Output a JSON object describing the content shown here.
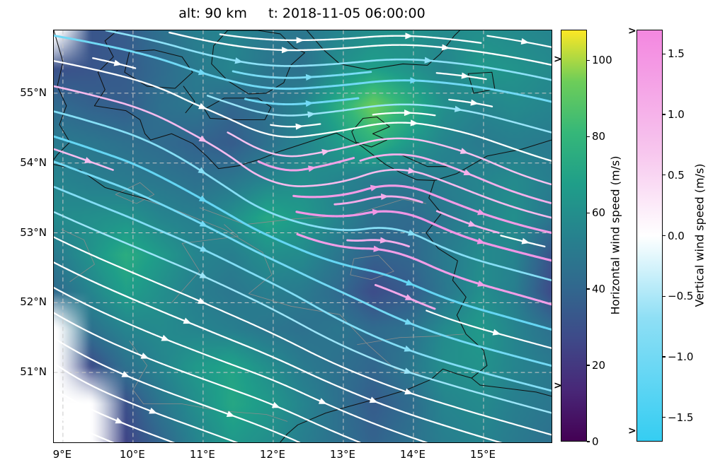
{
  "figure": {
    "title": "alt: 90 km     t: 2018-11-05 06:00:00",
    "extend_arrow_glyph": ">"
  },
  "chart_data": {
    "type": "streamline-map",
    "title": "alt: 90 km     t: 2018-11-05 06:00:00",
    "extent": {
      "lon_min": 8.87,
      "lon_max": 15.97,
      "lat_min": 50.0,
      "lat_max": 55.9
    },
    "x_ticks": [
      {
        "v": 9,
        "label": "9°E"
      },
      {
        "v": 10,
        "label": "10°E"
      },
      {
        "v": 11,
        "label": "11°E"
      },
      {
        "v": 12,
        "label": "12°E"
      },
      {
        "v": 13,
        "label": "13°E"
      },
      {
        "v": 14,
        "label": "14°E"
      },
      {
        "v": 15,
        "label": "15°E"
      }
    ],
    "y_ticks": [
      {
        "v": 51,
        "label": "51°N"
      },
      {
        "v": 52,
        "label": "52°N"
      },
      {
        "v": 53,
        "label": "53°N"
      },
      {
        "v": 54,
        "label": "54°N"
      },
      {
        "v": 55,
        "label": "55°N"
      }
    ],
    "lon_gridlines": [
      9,
      10,
      11,
      12,
      13,
      14,
      15
    ],
    "lat_gridlines": [
      51,
      52,
      53,
      54,
      55
    ],
    "colormaps": {
      "viridis": [
        "#440154",
        "#482878",
        "#3e4a89",
        "#31688e",
        "#26828e",
        "#1f9e89",
        "#35b779",
        "#6dcd59",
        "#fde725"
      ],
      "vertical": {
        "colors": [
          "#35cdf2",
          "#8fdff5",
          "#ffffff",
          "#f7c7ee",
          "#f387e0"
        ],
        "positions": [
          0,
          0.3,
          0.5,
          0.7,
          1
        ]
      }
    },
    "stream_colors": {
      "positive": "#ee7fdf",
      "negative": "#2fc8f0",
      "neutral": "#ffffff"
    },
    "colorbars": [
      {
        "id": "horizontal",
        "label": "Horizontal wind speed (m/s)",
        "vmin": 0,
        "vmax": 108,
        "ticks": [
          {
            "v": 0,
            "label": "0"
          },
          {
            "v": 20,
            "label": "20"
          },
          {
            "v": 40,
            "label": "40"
          },
          {
            "v": 60,
            "label": "60"
          },
          {
            "v": 80,
            "label": "80"
          },
          {
            "v": 100,
            "label": "100"
          }
        ]
      },
      {
        "id": "vertical",
        "label": "Vertical wind speed (m/s)",
        "vmin": -1.7,
        "vmax": 1.7,
        "ticks": [
          {
            "v": 1.5,
            "label": "1.5"
          },
          {
            "v": 1.0,
            "label": "1.0"
          },
          {
            "v": 0.5,
            "label": "0.5"
          },
          {
            "v": 0.0,
            "label": "0.0"
          },
          {
            "v": -0.5,
            "label": "−0.5"
          },
          {
            "v": -1.0,
            "label": "−1.0"
          },
          {
            "v": -1.5,
            "label": "−1.5"
          }
        ]
      }
    ],
    "wind_field": {
      "nx": 9,
      "ny": 7,
      "order": "rows-north-to-south",
      "u": [
        [
          30,
          40,
          45,
          50,
          60,
          65,
          60,
          55,
          50
        ],
        [
          35,
          45,
          40,
          55,
          70,
          80,
          65,
          55,
          50
        ],
        [
          40,
          55,
          60,
          65,
          60,
          55,
          60,
          55,
          50
        ],
        [
          45,
          60,
          70,
          75,
          55,
          45,
          50,
          55,
          45
        ],
        [
          35,
          50,
          60,
          65,
          60,
          50,
          45,
          50,
          40
        ],
        [
          25,
          45,
          60,
          70,
          60,
          55,
          50,
          45,
          40
        ],
        [
          30,
          45,
          55,
          60,
          55,
          50,
          45,
          40,
          35
        ]
      ],
      "v": [
        [
          -5,
          -8,
          -10,
          -5,
          0,
          5,
          -5,
          -8,
          -10
        ],
        [
          -8,
          -12,
          -20,
          -15,
          5,
          10,
          -5,
          -10,
          -12
        ],
        [
          -15,
          -20,
          -35,
          -50,
          10,
          20,
          -20,
          -25,
          -15
        ],
        [
          -22,
          -25,
          -30,
          -40,
          -20,
          5,
          -25,
          -15,
          -10
        ],
        [
          -20,
          -22,
          -25,
          -30,
          -35,
          -25,
          -18,
          -14,
          -12
        ],
        [
          -18,
          -20,
          -22,
          -25,
          -28,
          -22,
          -15,
          -12,
          -10
        ],
        [
          -15,
          -18,
          -20,
          -22,
          -25,
          -20,
          -15,
          -12,
          -10
        ]
      ],
      "w": [
        [
          0.3,
          0.0,
          0.0,
          0.0,
          -0.2,
          0.0,
          0.0,
          0.0,
          0.0
        ],
        [
          0.5,
          0.2,
          0.3,
          0.2,
          -0.8,
          -0.6,
          0.2,
          0.0,
          0.0
        ],
        [
          0.2,
          0.5,
          1.0,
          1.2,
          0.8,
          0.6,
          0.8,
          0.3,
          0.0
        ],
        [
          0.0,
          0.2,
          0.4,
          -0.6,
          -0.9,
          0.5,
          1.0,
          0.3,
          0.0
        ],
        [
          0.0,
          0.0,
          0.0,
          0.2,
          -0.5,
          0.8,
          0.6,
          0.0,
          0.0
        ],
        [
          0.0,
          0.0,
          0.0,
          0.0,
          0.3,
          0.9,
          0.4,
          0.0,
          0.0
        ],
        [
          0.0,
          0.0,
          0.0,
          0.0,
          0.2,
          0.5,
          0.2,
          0.0,
          0.0
        ]
      ]
    },
    "speed_field": {
      "nx": 15,
      "ny": 12,
      "order": "rows-north-to-south",
      "values": [
        [
          null,
          32,
          35,
          45,
          52,
          55,
          50,
          48,
          55,
          60,
          62,
          58,
          60,
          58,
          55
        ],
        [
          30,
          32,
          35,
          42,
          50,
          55,
          48,
          45,
          60,
          68,
          62,
          55,
          65,
          62,
          58
        ],
        [
          42,
          38,
          36,
          45,
          48,
          40,
          45,
          55,
          75,
          95,
          78,
          60,
          55,
          58,
          55
        ],
        [
          50,
          48,
          45,
          42,
          38,
          35,
          45,
          55,
          65,
          78,
          65,
          55,
          50,
          52,
          50
        ],
        [
          55,
          52,
          50,
          48,
          45,
          48,
          55,
          60,
          55,
          50,
          48,
          52,
          55,
          58,
          52
        ],
        [
          58,
          60,
          62,
          55,
          52,
          60,
          72,
          65,
          55,
          45,
          42,
          48,
          55,
          60,
          48
        ],
        [
          50,
          62,
          75,
          65,
          55,
          52,
          60,
          58,
          48,
          38,
          40,
          50,
          58,
          55,
          32
        ],
        [
          42,
          55,
          68,
          60,
          52,
          48,
          52,
          50,
          42,
          28,
          35,
          48,
          60,
          52,
          28
        ],
        [
          null,
          45,
          55,
          58,
          55,
          52,
          48,
          45,
          48,
          42,
          45,
          58,
          65,
          55,
          45
        ],
        [
          null,
          28,
          45,
          55,
          65,
          70,
          60,
          50,
          45,
          40,
          48,
          60,
          62,
          55,
          50
        ],
        [
          null,
          null,
          30,
          48,
          60,
          72,
          65,
          55,
          45,
          35,
          42,
          55,
          58,
          52,
          48
        ],
        [
          null,
          null,
          25,
          40,
          55,
          65,
          60,
          52,
          45,
          38,
          45,
          52,
          55,
          50,
          45
        ]
      ]
    }
  },
  "map": {
    "coastlines": [
      [
        [
          8.87,
          55.9
        ],
        [
          9.0,
          55.45
        ],
        [
          8.92,
          55.1
        ],
        [
          9.05,
          54.82
        ],
        [
          8.95,
          54.55
        ],
        [
          9.1,
          54.3
        ],
        [
          8.92,
          54.12
        ],
        [
          8.87,
          54.05
        ]
      ],
      [
        [
          9.45,
          54.82
        ],
        [
          9.6,
          55.05
        ],
        [
          9.5,
          55.3
        ],
        [
          9.72,
          55.52
        ],
        [
          9.6,
          55.75
        ],
        [
          9.78,
          55.9
        ]
      ],
      [
        [
          8.87,
          53.98
        ],
        [
          9.25,
          53.9
        ],
        [
          9.6,
          53.65
        ],
        [
          9.95,
          53.55
        ],
        [
          10.35,
          53.44
        ]
      ],
      [
        [
          9.45,
          54.82
        ],
        [
          9.9,
          54.75
        ],
        [
          10.1,
          54.62
        ],
        [
          10.17,
          54.42
        ],
        [
          10.25,
          54.33
        ],
        [
          10.55,
          54.42
        ],
        [
          10.85,
          54.28
        ],
        [
          11.05,
          54.1
        ],
        [
          11.22,
          53.92
        ],
        [
          11.5,
          53.96
        ],
        [
          11.8,
          54.05
        ],
        [
          12.1,
          54.17
        ],
        [
          12.5,
          54.3
        ],
        [
          12.9,
          54.43
        ],
        [
          13.03,
          54.36
        ],
        [
          13.25,
          54.25
        ],
        [
          13.6,
          53.98
        ],
        [
          13.82,
          53.86
        ],
        [
          14.05,
          53.76
        ],
        [
          14.3,
          53.75
        ],
        [
          14.62,
          53.85
        ],
        [
          15.05,
          54.1
        ],
        [
          15.55,
          54.2
        ],
        [
          15.97,
          54.33
        ]
      ],
      [
        [
          14.3,
          53.75
        ],
        [
          14.22,
          53.5
        ],
        [
          14.4,
          53.28
        ],
        [
          14.18,
          53.0
        ],
        [
          14.35,
          52.78
        ],
        [
          14.63,
          52.6
        ],
        [
          14.56,
          52.32
        ],
        [
          14.75,
          52.08
        ],
        [
          14.62,
          51.82
        ],
        [
          14.75,
          51.55
        ],
        [
          15.0,
          51.32
        ],
        [
          15.05,
          51.1
        ],
        [
          14.83,
          50.92
        ],
        [
          14.95,
          50.82
        ]
      ],
      [
        [
          12.1,
          50.0
        ],
        [
          12.2,
          50.12
        ],
        [
          12.35,
          50.25
        ],
        [
          12.75,
          50.42
        ],
        [
          13.1,
          50.52
        ],
        [
          13.5,
          50.63
        ],
        [
          13.9,
          50.75
        ],
        [
          14.25,
          50.9
        ],
        [
          14.42,
          51.05
        ],
        [
          14.62,
          50.98
        ],
        [
          14.83,
          50.92
        ]
      ],
      [
        [
          14.95,
          50.82
        ],
        [
          15.35,
          50.77
        ],
        [
          15.75,
          50.72
        ],
        [
          15.97,
          50.66
        ]
      ],
      [
        [
          9.95,
          55.6
        ],
        [
          10.3,
          55.62
        ],
        [
          10.7,
          55.52
        ],
        [
          10.85,
          55.3
        ],
        [
          10.6,
          55.07
        ],
        [
          10.2,
          55.1
        ],
        [
          9.88,
          55.3
        ],
        [
          9.95,
          55.6
        ]
      ],
      [
        [
          11.15,
          55.68
        ],
        [
          11.35,
          55.9
        ],
        [
          11.78,
          55.9
        ],
        [
          12.1,
          55.85
        ],
        [
          12.3,
          55.65
        ],
        [
          12.45,
          55.58
        ],
        [
          12.25,
          55.4
        ],
        [
          12.15,
          55.15
        ],
        [
          11.9,
          55.0
        ],
        [
          11.65,
          54.99
        ],
        [
          11.35,
          55.18
        ],
        [
          11.12,
          55.42
        ],
        [
          11.15,
          55.68
        ]
      ],
      [
        [
          11.02,
          54.77
        ],
        [
          11.3,
          54.93
        ],
        [
          11.78,
          54.93
        ],
        [
          11.97,
          54.8
        ],
        [
          11.88,
          54.62
        ],
        [
          11.5,
          54.62
        ],
        [
          11.1,
          54.64
        ],
        [
          11.02,
          54.77
        ]
      ],
      [
        [
          10.72,
          55.1
        ],
        [
          10.88,
          54.88
        ],
        [
          10.75,
          54.72
        ]
      ],
      [
        [
          12.48,
          55.9
        ],
        [
          12.72,
          55.62
        ],
        [
          12.95,
          55.42
        ],
        [
          13.35,
          55.34
        ],
        [
          13.85,
          55.42
        ],
        [
          14.2,
          55.4
        ],
        [
          14.38,
          55.56
        ],
        [
          14.58,
          55.82
        ],
        [
          14.66,
          55.9
        ]
      ],
      [
        [
          14.78,
          55.28
        ],
        [
          15.12,
          55.3
        ],
        [
          15.16,
          55.06
        ],
        [
          14.86,
          55.0
        ],
        [
          14.78,
          55.28
        ]
      ],
      [
        [
          13.12,
          54.45
        ],
        [
          13.28,
          54.64
        ],
        [
          13.48,
          54.66
        ],
        [
          13.66,
          54.52
        ],
        [
          13.42,
          54.42
        ],
        [
          13.62,
          54.33
        ],
        [
          13.4,
          54.23
        ],
        [
          13.18,
          54.3
        ],
        [
          13.12,
          54.45
        ]
      ],
      [
        [
          13.82,
          54.12
        ],
        [
          14.2,
          53.95
        ],
        [
          14.55,
          53.95
        ]
      ]
    ],
    "admin_borders": [
      [
        [
          10.95,
          53.36
        ],
        [
          11.6,
          53.12
        ],
        [
          12.3,
          53.2
        ],
        [
          13.1,
          53.25
        ],
        [
          13.85,
          53.48
        ],
        [
          14.18,
          53.42
        ]
      ],
      [
        [
          10.55,
          52.0
        ],
        [
          10.95,
          52.45
        ],
        [
          10.7,
          52.85
        ],
        [
          11.5,
          52.95
        ],
        [
          11.3,
          53.12
        ]
      ],
      [
        [
          13.1,
          52.4
        ],
        [
          13.15,
          52.63
        ],
        [
          13.5,
          52.68
        ],
        [
          13.72,
          52.45
        ],
        [
          13.4,
          52.33
        ],
        [
          13.1,
          52.4
        ]
      ],
      [
        [
          13.2,
          51.4
        ],
        [
          13.8,
          51.5
        ],
        [
          14.3,
          51.52
        ],
        [
          14.72,
          51.55
        ]
      ],
      [
        [
          10.15,
          50.55
        ],
        [
          10.7,
          50.55
        ],
        [
          11.25,
          50.45
        ],
        [
          11.9,
          50.4
        ],
        [
          12.2,
          50.3
        ]
      ],
      [
        [
          9.95,
          51.45
        ],
        [
          10.2,
          51.1
        ],
        [
          10.0,
          50.75
        ],
        [
          10.15,
          50.55
        ]
      ],
      [
        [
          9.75,
          53.55
        ],
        [
          10.1,
          53.72
        ],
        [
          10.3,
          53.55
        ],
        [
          10.05,
          53.42
        ],
        [
          9.75,
          53.55
        ]
      ],
      [
        [
          9.1,
          52.3
        ],
        [
          9.45,
          52.55
        ],
        [
          9.3,
          52.9
        ],
        [
          8.98,
          53.05
        ]
      ],
      [
        [
          9.95,
          53.55
        ],
        [
          10.6,
          53.33
        ],
        [
          11.3,
          53.05
        ],
        [
          11.85,
          52.72
        ],
        [
          11.98,
          52.4
        ],
        [
          11.65,
          52.13
        ],
        [
          12.25,
          51.95
        ],
        [
          12.95,
          51.83
        ],
        [
          13.35,
          51.4
        ],
        [
          13.74,
          51.05
        ],
        [
          14.1,
          50.98
        ]
      ]
    ]
  }
}
